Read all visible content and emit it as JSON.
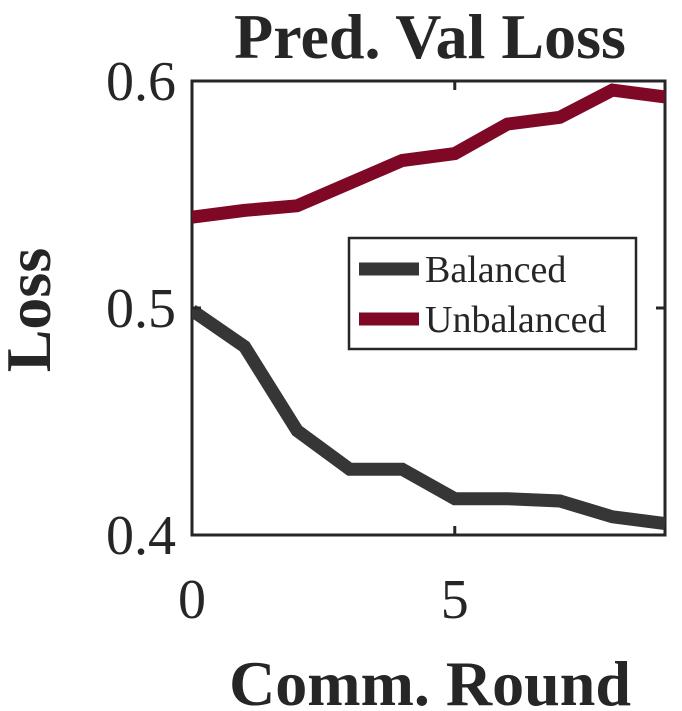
{
  "chart_data": {
    "type": "line",
    "title": "Pred. Val Loss",
    "xlabel": "Comm. Round",
    "ylabel": "Loss",
    "xlim": [
      0,
      9
    ],
    "ylim": [
      0.4,
      0.6
    ],
    "xticks": [
      0,
      5
    ],
    "xtick_labels": [
      "0",
      "5"
    ],
    "yticks": [
      0.4,
      0.5,
      0.6
    ],
    "ytick_labels": [
      "0.4",
      "0.5",
      "0.6"
    ],
    "grid": false,
    "legend_position": "center-right",
    "x": [
      0,
      1,
      2,
      3,
      4,
      5,
      6,
      7,
      8,
      9
    ],
    "series": [
      {
        "name": "Balanced",
        "color": "#363636",
        "values": [
          0.499,
          0.483,
          0.446,
          0.429,
          0.429,
          0.416,
          0.416,
          0.415,
          0.408,
          0.405
        ]
      },
      {
        "name": "Unbalanced",
        "color": "#7e0825",
        "values": [
          0.54,
          0.543,
          0.545,
          0.555,
          0.565,
          0.568,
          0.581,
          0.584,
          0.596,
          0.593
        ]
      }
    ]
  }
}
